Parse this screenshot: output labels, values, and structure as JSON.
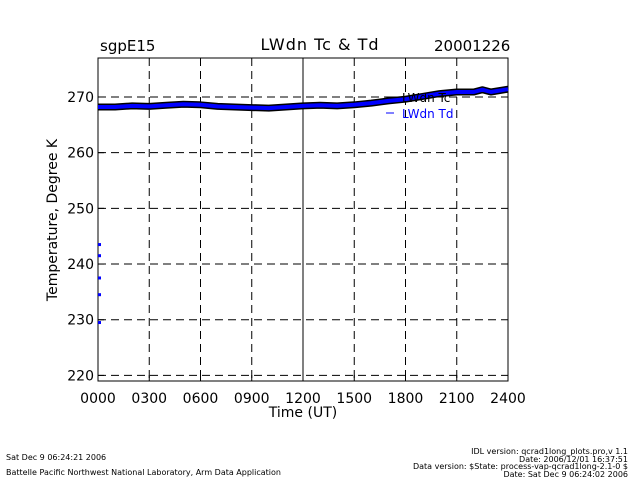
{
  "header": {
    "left": "sgpE15",
    "title": "LWdn Tc & Td",
    "right": "20001226"
  },
  "footer": {
    "left_line1": "Sat Dec  9 06:24:21 2006",
    "left_line2": "Battelle Pacific Northwest National Laboratory, Arm Data Application",
    "right_line1": "IDL version: qcrad1long_plots.pro,v 1.1",
    "right_line2": "Date: 2006/12/01 16:37:51",
    "right_line3": "Data version: $State: process-vap-qcrad1long-2.1-0 $",
    "right_line4": "Date: Sat Dec  9 06:24:02 2006"
  },
  "colors": {
    "tc": "#000000",
    "td": "#0000ff",
    "grid": "#000000"
  },
  "chart_data": {
    "type": "line",
    "xlabel": "Time (UT)",
    "ylabel": "Temperature, Degree K",
    "xlim": [
      0,
      2400
    ],
    "ylim": [
      219,
      277
    ],
    "x_ticks": [
      0,
      300,
      600,
      900,
      1200,
      1500,
      1800,
      2100,
      2400
    ],
    "x_tick_labels": [
      "0000",
      "0300",
      "0600",
      "0900",
      "1200",
      "1500",
      "1800",
      "2100",
      "2400"
    ],
    "y_ticks": [
      220,
      230,
      240,
      250,
      260,
      270
    ],
    "y_tick_labels": [
      "220",
      "230",
      "240",
      "250",
      "260",
      "270"
    ],
    "grid": true,
    "legend_position": "top-right",
    "series": [
      {
        "name": "LWdn Tc",
        "color": "#000000",
        "x": [
          0,
          100,
          200,
          300,
          400,
          500,
          600,
          700,
          800,
          900,
          1000,
          1100,
          1200,
          1300,
          1400,
          1500,
          1600,
          1700,
          1800,
          1900,
          2000,
          2100,
          2200,
          2250,
          2300,
          2400
        ],
        "y": [
          268.2,
          268.2,
          268.4,
          268.3,
          268.5,
          268.7,
          268.6,
          268.3,
          268.2,
          268.1,
          268.0,
          268.2,
          268.4,
          268.5,
          268.4,
          268.6,
          268.9,
          269.3,
          269.6,
          270.1,
          270.6,
          270.9,
          270.9,
          271.3,
          270.9,
          271.4
        ]
      },
      {
        "name": "LWdn Td",
        "color": "#0000ff",
        "x": [
          0,
          100,
          200,
          300,
          400,
          500,
          600,
          700,
          800,
          900,
          1000,
          1100,
          1200,
          1300,
          1400,
          1500,
          1600,
          1700,
          1800,
          1900,
          2000,
          2100,
          2200,
          2250,
          2300,
          2400
        ],
        "y": [
          268.2,
          268.2,
          268.4,
          268.3,
          268.5,
          268.7,
          268.6,
          268.3,
          268.2,
          268.1,
          268.0,
          268.2,
          268.4,
          268.5,
          268.4,
          268.6,
          268.9,
          269.3,
          269.6,
          270.1,
          270.6,
          270.9,
          270.9,
          271.3,
          270.9,
          271.4
        ]
      },
      {
        "name": "",
        "color": "#0000ff",
        "x": [
          0,
          0,
          0,
          0,
          0
        ],
        "y": [
          243.5,
          241.5,
          237.5,
          234.5,
          229.5
        ]
      }
    ]
  }
}
